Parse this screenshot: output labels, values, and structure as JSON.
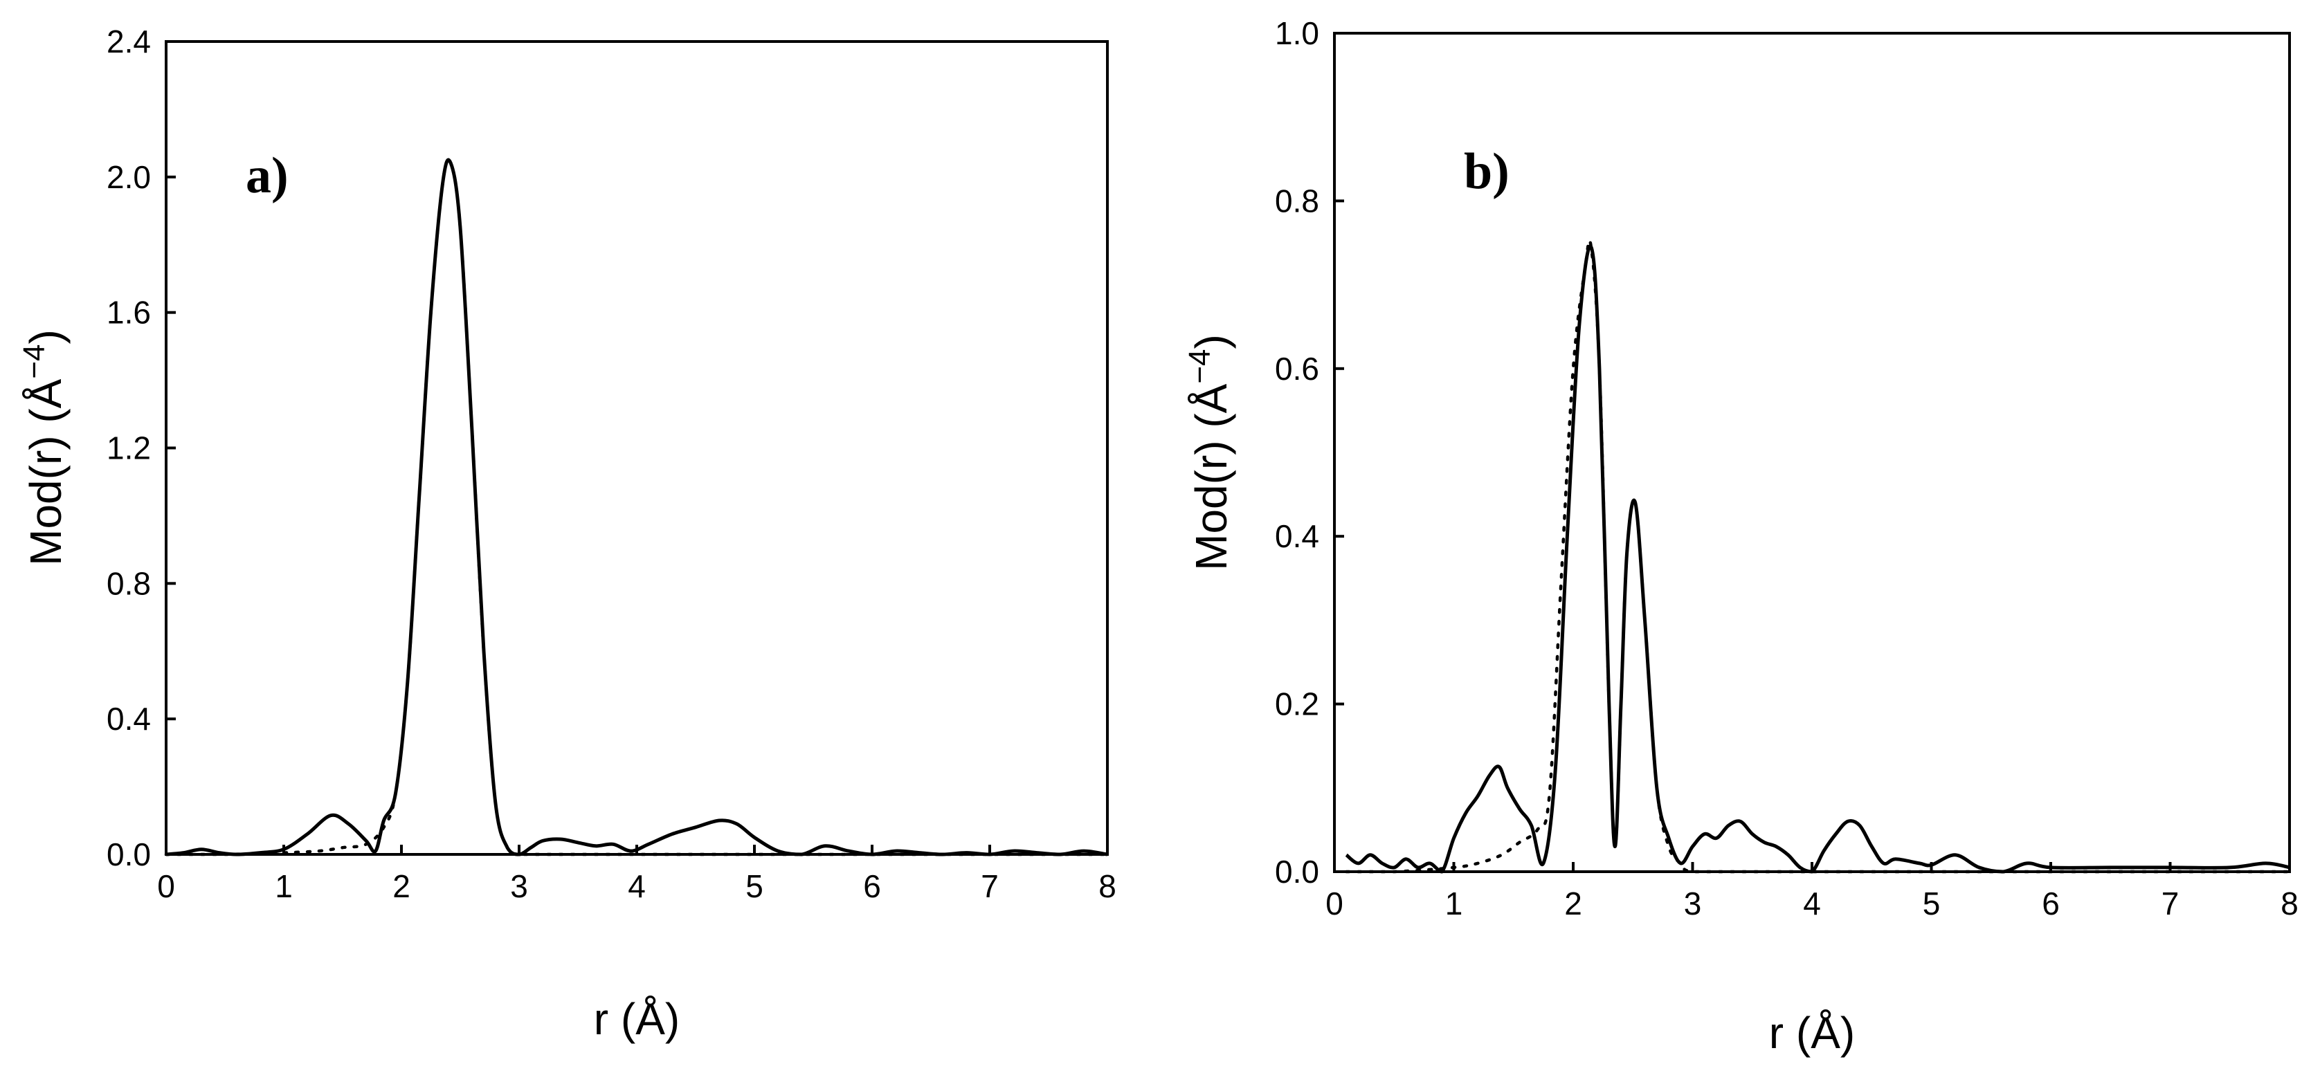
{
  "chart_data": [
    {
      "type": "line",
      "panel_label": "a)",
      "xlabel": "r  (Å)",
      "ylabel": "Mod(r)  (Å",
      "ylabel_sup": "−4",
      "ylabel_close": ")",
      "xlim": [
        0,
        8
      ],
      "ylim": [
        0,
        2.4
      ],
      "xticks": [
        "0",
        "1",
        "2",
        "3",
        "4",
        "5",
        "6",
        "7",
        "8"
      ],
      "yticks": [
        "0.0",
        "0.4",
        "0.8",
        "1.2",
        "1.6",
        "2.0",
        "2.4"
      ],
      "legend": "none",
      "grid": false,
      "series": [
        {
          "style": "solid",
          "x": [
            0,
            0.15,
            0.3,
            0.45,
            0.6,
            0.8,
            1.0,
            1.2,
            1.4,
            1.55,
            1.7,
            1.78,
            1.85,
            1.95,
            2.05,
            2.15,
            2.25,
            2.35,
            2.42,
            2.5,
            2.6,
            2.7,
            2.8,
            2.9,
            3.0,
            3.1,
            3.2,
            3.35,
            3.5,
            3.65,
            3.8,
            3.95,
            4.1,
            4.3,
            4.5,
            4.7,
            4.85,
            5.0,
            5.2,
            5.4,
            5.6,
            5.8,
            6.0,
            6.2,
            6.4,
            6.6,
            6.8,
            7.0,
            7.2,
            7.4,
            7.6,
            7.8,
            8.0
          ],
          "y": [
            0.0,
            0.005,
            0.015,
            0.005,
            0.0,
            0.005,
            0.015,
            0.06,
            0.115,
            0.09,
            0.04,
            0.01,
            0.1,
            0.18,
            0.5,
            1.05,
            1.6,
            1.98,
            2.04,
            1.85,
            1.25,
            0.6,
            0.15,
            0.02,
            0.0,
            0.02,
            0.04,
            0.045,
            0.035,
            0.025,
            0.03,
            0.01,
            0.03,
            0.06,
            0.08,
            0.1,
            0.09,
            0.05,
            0.01,
            0.0,
            0.025,
            0.01,
            0.0,
            0.01,
            0.005,
            0.0,
            0.005,
            0.0,
            0.01,
            0.005,
            0.0,
            0.01,
            0.0
          ]
        },
        {
          "style": "dotted",
          "x": [
            0,
            0.5,
            1.0,
            1.3,
            1.5,
            1.7,
            1.85,
            1.95,
            2.05,
            2.15,
            2.25,
            2.35,
            2.42,
            2.5,
            2.6,
            2.7,
            2.8,
            2.9,
            3.0,
            3.5,
            4.0,
            5.0,
            6.0,
            7.0,
            8.0
          ],
          "y": [
            0.0,
            0.0,
            0.005,
            0.01,
            0.02,
            0.03,
            0.08,
            0.18,
            0.5,
            1.05,
            1.6,
            1.98,
            2.04,
            1.85,
            1.25,
            0.6,
            0.15,
            0.02,
            0.0,
            0.0,
            0.0,
            0.0,
            0.0,
            0.0,
            0.0
          ]
        }
      ]
    },
    {
      "type": "line",
      "panel_label": "b)",
      "xlabel": "r  (Å)",
      "ylabel": "Mod(r)  (Å",
      "ylabel_sup": "−4",
      "ylabel_close": ")",
      "xlim": [
        0,
        8
      ],
      "ylim": [
        0,
        1.0
      ],
      "xticks": [
        "0",
        "1",
        "2",
        "3",
        "4",
        "5",
        "6",
        "7",
        "8"
      ],
      "yticks": [
        "0.0",
        "0.2",
        "0.4",
        "0.6",
        "0.8",
        "1.0"
      ],
      "legend": "none",
      "grid": false,
      "series": [
        {
          "style": "solid",
          "x": [
            0.1,
            0.2,
            0.3,
            0.4,
            0.5,
            0.6,
            0.7,
            0.8,
            0.9,
            1.0,
            1.1,
            1.2,
            1.3,
            1.38,
            1.45,
            1.55,
            1.65,
            1.75,
            1.85,
            1.95,
            2.05,
            2.15,
            2.22,
            2.3,
            2.35,
            2.4,
            2.45,
            2.52,
            2.6,
            2.7,
            2.8,
            2.9,
            3.0,
            3.1,
            3.2,
            3.3,
            3.4,
            3.5,
            3.6,
            3.7,
            3.8,
            3.9,
            4.0,
            4.1,
            4.2,
            4.3,
            4.4,
            4.5,
            4.6,
            4.7,
            4.9,
            5.0,
            5.2,
            5.4,
            5.6,
            5.8,
            6.0,
            6.5,
            7.0,
            7.5,
            7.8,
            8.0
          ],
          "y": [
            0.02,
            0.01,
            0.02,
            0.01,
            0.005,
            0.015,
            0.005,
            0.01,
            0.0,
            0.04,
            0.07,
            0.09,
            0.115,
            0.125,
            0.1,
            0.075,
            0.055,
            0.01,
            0.12,
            0.4,
            0.65,
            0.745,
            0.6,
            0.2,
            0.03,
            0.2,
            0.38,
            0.44,
            0.3,
            0.1,
            0.04,
            0.01,
            0.03,
            0.045,
            0.04,
            0.055,
            0.06,
            0.045,
            0.035,
            0.03,
            0.02,
            0.005,
            0.0,
            0.025,
            0.045,
            0.06,
            0.055,
            0.03,
            0.01,
            0.015,
            0.01,
            0.008,
            0.02,
            0.005,
            0.0,
            0.01,
            0.005,
            0.005,
            0.005,
            0.005,
            0.01,
            0.005
          ]
        },
        {
          "style": "dotted",
          "x": [
            0.1,
            0.5,
            1.0,
            1.2,
            1.4,
            1.55,
            1.7,
            1.8,
            1.9,
            2.0,
            2.1,
            2.15,
            2.22,
            2.3,
            2.35,
            2.4,
            2.45,
            2.52,
            2.6,
            2.7,
            2.8,
            2.9,
            3.0,
            3.5,
            4.0,
            5.0,
            6.0,
            7.0,
            8.0
          ],
          "y": [
            0.0,
            0.0,
            0.005,
            0.01,
            0.02,
            0.035,
            0.05,
            0.09,
            0.35,
            0.6,
            0.72,
            0.745,
            0.6,
            0.2,
            0.03,
            0.2,
            0.38,
            0.44,
            0.3,
            0.1,
            0.03,
            0.01,
            0.0,
            0.0,
            0.0,
            0.0,
            0.0,
            0.0,
            0.0
          ]
        }
      ]
    }
  ]
}
